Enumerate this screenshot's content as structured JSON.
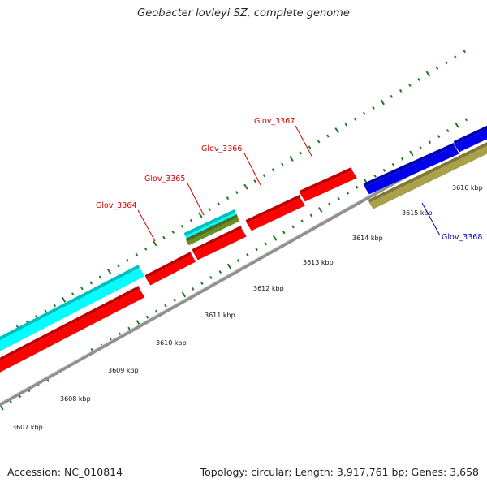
{
  "title": "Geobacter lovleyi SZ, complete genome",
  "footer": {
    "accession": "Accession: NC_010814",
    "summary": "Topology: circular; Length: 3,917,761 bp; Genes: 3,658"
  },
  "colors": {
    "red": "#ff0000",
    "cyan": "#00ffff",
    "blue": "#0000ee",
    "olive": "#a9a04a",
    "green_rna": "#6b8e23",
    "backbone": "#909090",
    "tick": "#1f7a1f",
    "label_red": "#dd0000",
    "label_blue": "#0000cc"
  },
  "ruler": {
    "unit": "kbp",
    "labels": [
      "3607 kbp",
      "3608 kbp",
      "3609 kbp",
      "3610 kbp",
      "3611 kbp",
      "3612 kbp",
      "3613 kbp",
      "3614 kbp",
      "3615 kbp",
      "3616 kbp"
    ]
  },
  "genes": [
    {
      "id": "Glov_3364",
      "color": "red"
    },
    {
      "id": "Glov_3365",
      "color": "cyan"
    },
    {
      "id": "Glov_3366",
      "color": "red"
    },
    {
      "id": "Glov_3367",
      "color": "red"
    },
    {
      "id": "Glov_3368",
      "color": "blue"
    }
  ]
}
